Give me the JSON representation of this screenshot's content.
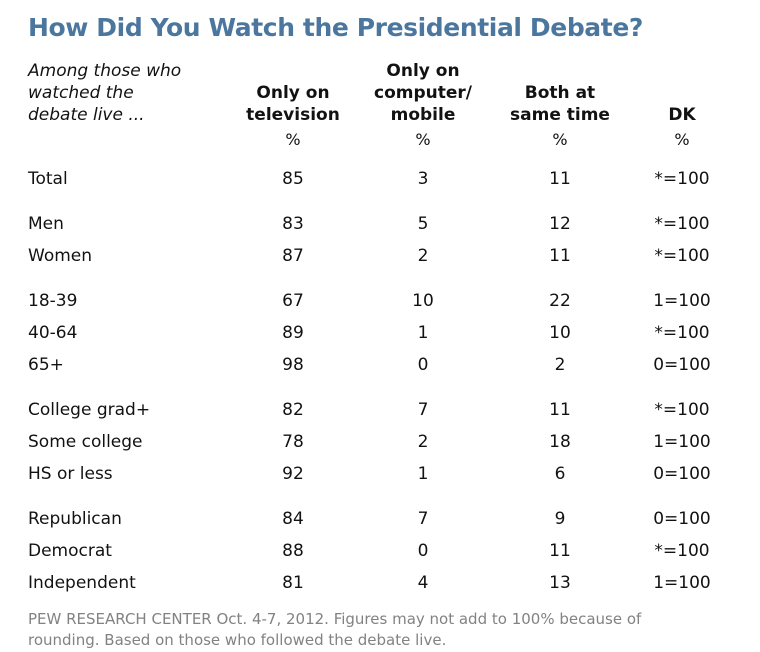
{
  "chart_data": {
    "type": "table",
    "title": "How Did You Watch the Presidential Debate?",
    "subtitle": "Among those who watched the debate live ...",
    "subtitle_display": "Among those who\nwatched the\ndebate live ...",
    "columns": [
      {
        "label": "Only on television",
        "display": "Only on\ntelevision",
        "unit": "%"
      },
      {
        "label": "Only on computer/mobile",
        "display": "Only on\ncomputer/\nmobile",
        "unit": "%"
      },
      {
        "label": "Both at same time",
        "display": "Both at\nsame time",
        "unit": "%"
      },
      {
        "label": "DK",
        "display": "DK",
        "unit": "%"
      }
    ],
    "groups": [
      {
        "rows": [
          {
            "label": "Total",
            "values": [
              85,
              3,
              11
            ],
            "dk": "*=100"
          }
        ]
      },
      {
        "rows": [
          {
            "label": "Men",
            "values": [
              83,
              5,
              12
            ],
            "dk": "*=100"
          },
          {
            "label": "Women",
            "values": [
              87,
              2,
              11
            ],
            "dk": "*=100"
          }
        ]
      },
      {
        "rows": [
          {
            "label": "18-39",
            "values": [
              67,
              10,
              22
            ],
            "dk": "1=100"
          },
          {
            "label": "40-64",
            "values": [
              89,
              1,
              10
            ],
            "dk": "*=100"
          },
          {
            "label": "65+",
            "values": [
              98,
              0,
              2
            ],
            "dk": "0=100"
          }
        ]
      },
      {
        "rows": [
          {
            "label": "College grad+",
            "values": [
              82,
              7,
              11
            ],
            "dk": "*=100"
          },
          {
            "label": "Some college",
            "values": [
              78,
              2,
              18
            ],
            "dk": "1=100"
          },
          {
            "label": "HS or less",
            "values": [
              92,
              1,
              6
            ],
            "dk": "0=100"
          }
        ]
      },
      {
        "rows": [
          {
            "label": "Republican",
            "values": [
              84,
              7,
              9
            ],
            "dk": "0=100"
          },
          {
            "label": "Democrat",
            "values": [
              88,
              0,
              11
            ],
            "dk": "*=100"
          },
          {
            "label": "Independent",
            "values": [
              81,
              4,
              13
            ],
            "dk": "1=100"
          }
        ]
      }
    ],
    "footnote_lines": [
      "PEW RESEARCH CENTER Oct. 4-7, 2012. Figures may not add to 100% because of",
      "rounding. Based on those who followed the debate live."
    ],
    "layout": {
      "title_color": "#4b779f",
      "footnote_color": "#828282"
    }
  }
}
